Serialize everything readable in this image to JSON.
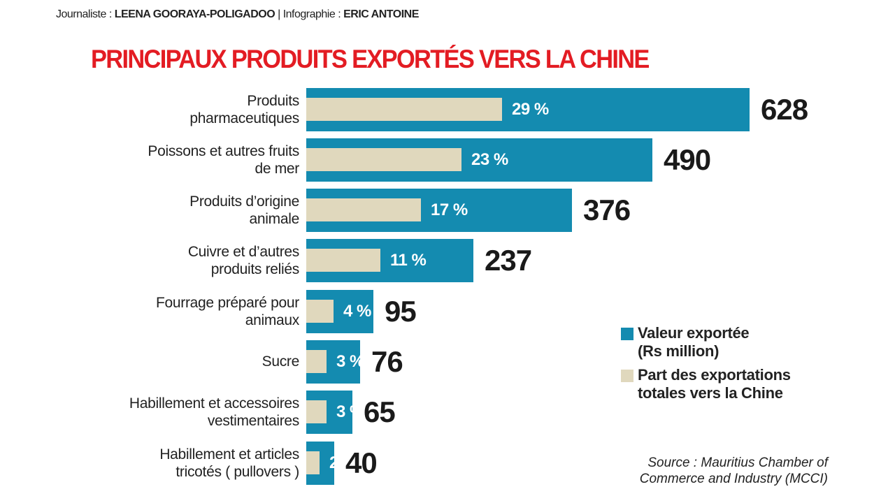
{
  "header": {
    "credit_journalist_label": "Journaliste : ",
    "credit_journalist_name": "LEENA GOORAYA-POLIGADOO",
    "credit_separator": " | ",
    "credit_infographie_label": "Infographie : ",
    "credit_infographie_name": "ERIC ANTOINE",
    "title": "PRINCIPAUX PRODUITS EXPORTÉS VERS LA CHINE"
  },
  "rows": [
    {
      "label_line1": "Produits",
      "label_line2": "pharmaceutiques",
      "pct": "29 %",
      "value": "628"
    },
    {
      "label_line1": "Poissons et autres fruits",
      "label_line2": "de mer",
      "pct": "23 %",
      "value": "490"
    },
    {
      "label_line1": "Produits d’origine",
      "label_line2": "animale",
      "pct": "17 %",
      "value": "376"
    },
    {
      "label_line1": "Cuivre et d’autres",
      "label_line2": "produits reliés",
      "pct": "11 %",
      "value": "237"
    },
    {
      "label_line1": "Fourrage préparé pour",
      "label_line2": "animaux",
      "pct": "4 %",
      "value": "95"
    },
    {
      "label_line1": "Sucre",
      "label_line2": "",
      "pct": "3 %",
      "value": "76"
    },
    {
      "label_line1": "Habillement et accessoires",
      "label_line2": "vestimentaires",
      "pct": "3 %",
      "value": "65"
    },
    {
      "label_line1": "Habillement et articles",
      "label_line2": "tricotés ( pullovers )",
      "pct": "2 %",
      "value": "40"
    }
  ],
  "legend": {
    "blue_line1": "Valeur exportée",
    "blue_line2": "(Rs million)",
    "beige_line1": "Part des exportations",
    "beige_line2": "totales vers la Chine"
  },
  "source": {
    "line1": "Source : Mauritius Chamber of",
    "line2": "Commerce and Industry (MCCI)"
  },
  "colors": {
    "title": "#e31c23",
    "value_bar": "#148bb0",
    "share_bar": "#e0d8bd"
  },
  "chart_data": {
    "type": "bar",
    "orientation": "horizontal",
    "title": "PRINCIPAUX PRODUITS EXPORTÉS VERS LA CHINE",
    "categories": [
      "Produits pharmaceutiques",
      "Poissons et autres fruits de mer",
      "Produits d’origine animale",
      "Cuivre et d’autres produits reliés",
      "Fourrage préparé pour animaux",
      "Sucre",
      "Habillement et accessoires vestimentaires",
      "Habillement et articles tricotés ( pullovers )"
    ],
    "series": [
      {
        "name": "Valeur exportée (Rs million)",
        "values": [
          628,
          490,
          376,
          237,
          95,
          76,
          65,
          40
        ],
        "color": "#148bb0"
      },
      {
        "name": "Part des exportations totales vers la Chine (%)",
        "values": [
          29,
          23,
          17,
          11,
          4,
          3,
          3,
          2
        ],
        "color": "#e0d8bd"
      }
    ],
    "xlabel": "",
    "ylabel": "",
    "grid": false,
    "legend_position": "right-bottom",
    "source": "Source : Mauritius Chamber of Commerce and Industry (MCCI)"
  }
}
